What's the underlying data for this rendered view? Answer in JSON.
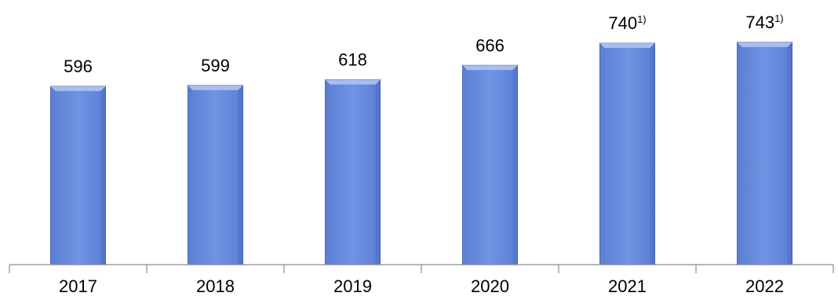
{
  "chart_data": {
    "type": "bar",
    "title": "",
    "xlabel": "",
    "ylabel": "",
    "categories": [
      "2017",
      "2018",
      "2019",
      "2020",
      "2021",
      "2022"
    ],
    "values": [
      596,
      599,
      618,
      666,
      740,
      743
    ],
    "data_labels": [
      "596",
      "599",
      "618",
      "666",
      "740",
      "743"
    ],
    "footnote_markers": [
      "",
      "",
      "",
      "",
      "1)",
      "1)"
    ],
    "ylim": [
      0,
      800
    ],
    "grid": false,
    "legend": "none",
    "colors": {
      "bar_fill": "#6d8ede",
      "bar_top": "#a9bdf0",
      "bar_edge": "#3f5fae",
      "axis": "#8c8c8c"
    }
  }
}
